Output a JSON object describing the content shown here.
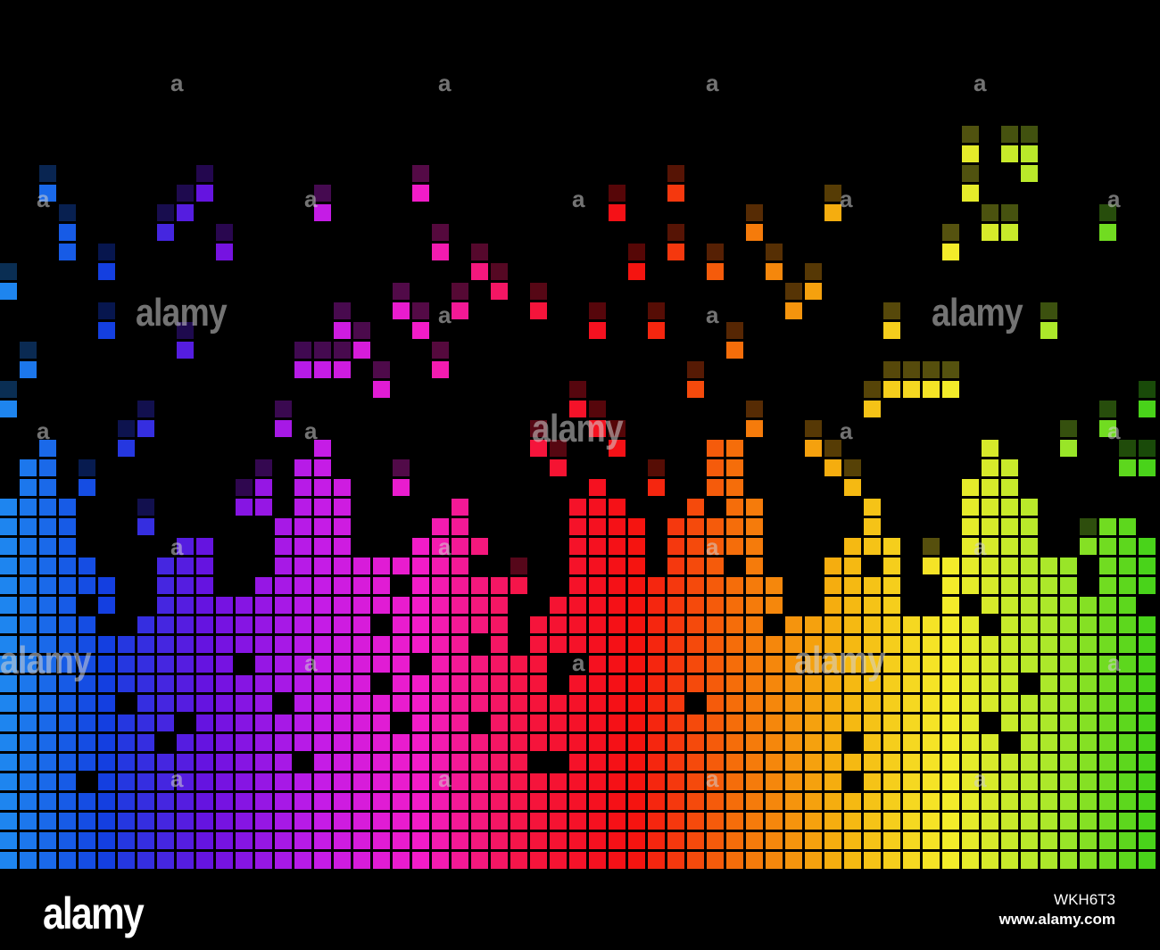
{
  "image": {
    "subject": "rainbow equalizer bars",
    "palette": [
      "#1f8bf0",
      "#1340e0",
      "#6a12e0",
      "#c21ce8",
      "#f21cc8",
      "#f51440",
      "#f51010",
      "#f5700a",
      "#f5b410",
      "#f5ec2a",
      "#a8e82a",
      "#3cd018"
    ]
  },
  "watermarks": {
    "brand_text": "alamy",
    "letter": "a"
  },
  "footer": {
    "logo": "alamy",
    "image_id": "WKH6T3",
    "site": "www.alamy.com"
  }
}
